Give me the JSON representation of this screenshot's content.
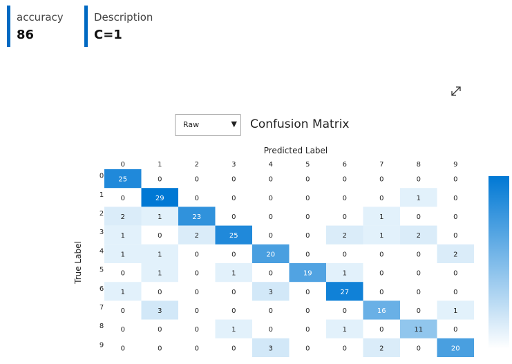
{
  "metrics": [
    {
      "label": "accuracy",
      "value": "86"
    },
    {
      "label": "Description",
      "value": "C=1"
    }
  ],
  "view_select": {
    "value": "Raw"
  },
  "icons": {
    "expand": "expand-diagonal-icon",
    "caret": "caret-down-icon"
  },
  "colors": {
    "accent": "#0069c2",
    "cell_max": "#0078d4",
    "cell_min": "#ffffff"
  },
  "chart_data": {
    "type": "heatmap",
    "title": "Confusion Matrix",
    "xlabel": "Predicted Label",
    "ylabel": "True Label",
    "x_categories": [
      "0",
      "1",
      "2",
      "3",
      "4",
      "5",
      "6",
      "7",
      "8",
      "9"
    ],
    "y_categories": [
      "0",
      "1",
      "2",
      "3",
      "4",
      "5",
      "6",
      "7",
      "8",
      "9"
    ],
    "values": [
      [
        25,
        0,
        0,
        0,
        0,
        0,
        0,
        0,
        0,
        0
      ],
      [
        0,
        29,
        0,
        0,
        0,
        0,
        0,
        0,
        1,
        0
      ],
      [
        2,
        1,
        23,
        0,
        0,
        0,
        0,
        1,
        0,
        0
      ],
      [
        1,
        0,
        2,
        25,
        0,
        0,
        2,
        1,
        2,
        0
      ],
      [
        1,
        1,
        0,
        0,
        20,
        0,
        0,
        0,
        0,
        2
      ],
      [
        0,
        1,
        0,
        1,
        0,
        19,
        1,
        0,
        0,
        0
      ],
      [
        1,
        0,
        0,
        0,
        3,
        0,
        27,
        0,
        0,
        0
      ],
      [
        0,
        3,
        0,
        0,
        0,
        0,
        0,
        16,
        0,
        1
      ],
      [
        0,
        0,
        0,
        1,
        0,
        0,
        1,
        0,
        11,
        0
      ],
      [
        0,
        0,
        0,
        0,
        3,
        0,
        0,
        2,
        0,
        20
      ]
    ],
    "color_scale": {
      "min": 0,
      "max": 29,
      "legend": "right"
    }
  }
}
